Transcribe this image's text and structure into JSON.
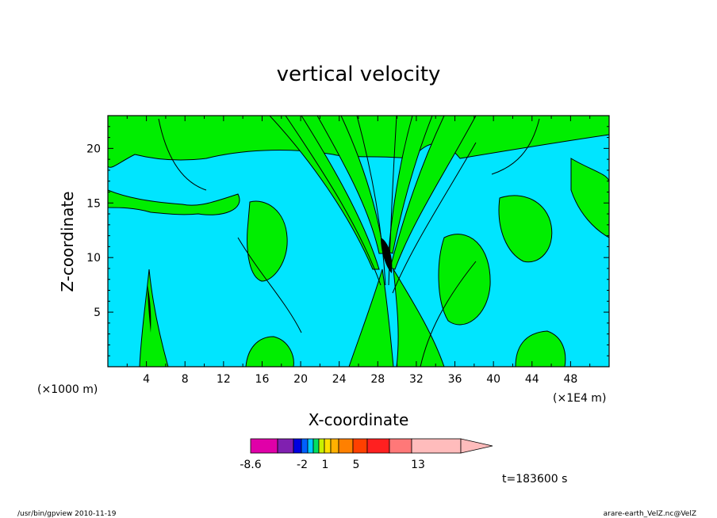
{
  "chart_data": {
    "type": "contour",
    "title": "vertical velocity",
    "xlabel": "X-coordinate",
    "ylabel": "Z-coordinate",
    "x_unit_left": "(×1000 m)",
    "x_unit_right": "(×1E4 m)",
    "xlim": [
      0,
      52
    ],
    "ylim": [
      0,
      23
    ],
    "xticks": [
      "4",
      "8",
      "12",
      "16",
      "20",
      "24",
      "28",
      "32",
      "36",
      "40",
      "44",
      "48"
    ],
    "yticks": [
      "5",
      "10",
      "15",
      "20"
    ],
    "fill_levels": [
      {
        "color": "#00e5ff",
        "meaning": "negative"
      },
      {
        "color": "#00ee00",
        "meaning": "positive"
      }
    ],
    "colorbar": {
      "labels": [
        "-8.6",
        "-2",
        "1",
        "5",
        "13"
      ],
      "colors": [
        "#e000a8",
        "#8020b0",
        "#0000e0",
        "#0060ff",
        "#00c8ff",
        "#00e060",
        "#c8f000",
        "#ffe000",
        "#ffb000",
        "#ff8000",
        "#ff4000",
        "#ff2020",
        "#ff7878",
        "#ffbcbc"
      ]
    },
    "time_label": "t=183600 s"
  },
  "footer": {
    "left": "/usr/bin/gpview  2010-11-19",
    "right": "arare-earth_VelZ.nc@VelZ"
  }
}
